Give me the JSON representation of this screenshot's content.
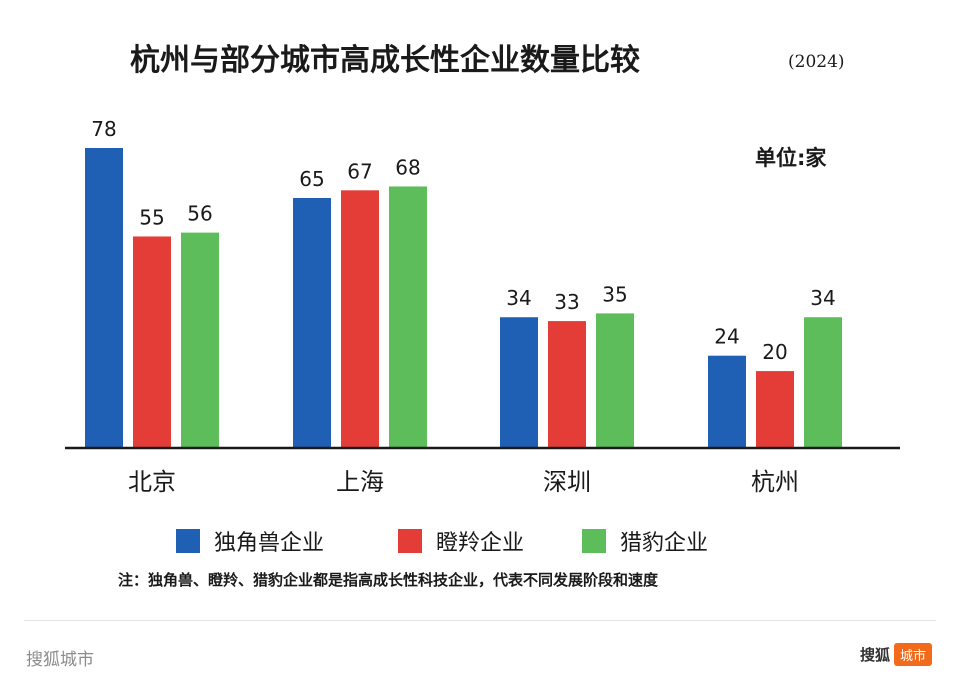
{
  "chart_data": {
    "type": "bar",
    "title": "杭州与部分城市高成长性企业数量比较",
    "title_suffix": "(2024)",
    "unit": "单位:家",
    "categories": [
      "北京",
      "上海",
      "深圳",
      "杭州"
    ],
    "series": [
      {
        "name": "独角兽企业",
        "color": "#1f5fb4",
        "values": [
          78,
          65,
          34,
          24
        ]
      },
      {
        "name": "瞪羚企业",
        "color": "#e43d38",
        "values": [
          55,
          67,
          33,
          20
        ]
      },
      {
        "name": "猎豹企业",
        "color": "#5cbd5a",
        "values": [
          56,
          68,
          35,
          34
        ]
      }
    ],
    "ylim": [
      0,
      80
    ],
    "grid": false,
    "legend_position": "bottom",
    "note": "注：独角兽、瞪羚、猎豹企业都是指高成长性科技企业，代表不同发展阶段和速度"
  },
  "footer": {
    "source": "搜狐城市",
    "brand_name": "搜狐",
    "brand_tag": "城市"
  }
}
